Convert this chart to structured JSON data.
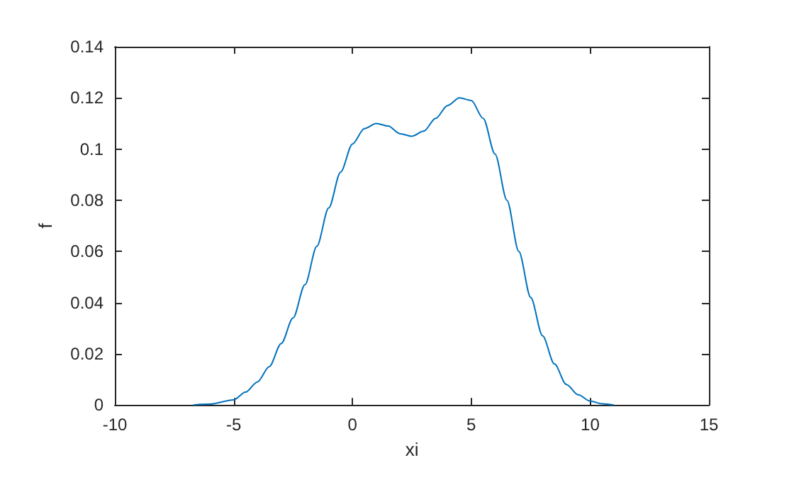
{
  "chart_data": {
    "type": "line",
    "xlabel": "xi",
    "ylabel": "f",
    "x": [
      -6.7,
      -6,
      -5,
      -4.5,
      -4,
      -3.5,
      -3,
      -2.5,
      -2,
      -1.5,
      -1,
      -0.5,
      0,
      0.5,
      1,
      1.5,
      2,
      2.5,
      3,
      3.5,
      4,
      4.5,
      5,
      5.5,
      6,
      6.5,
      7,
      7.5,
      8,
      8.5,
      9,
      9.5,
      10,
      10.5,
      11
    ],
    "series": [
      {
        "color": "#0072bd",
        "values": [
          0,
          0.0003,
          0.002,
          0.005,
          0.009,
          0.015,
          0.024,
          0.034,
          0.047,
          0.062,
          0.077,
          0.091,
          0.102,
          0.108,
          0.11,
          0.109,
          0.106,
          0.105,
          0.107,
          0.112,
          0.117,
          0.12,
          0.119,
          0.112,
          0.098,
          0.08,
          0.06,
          0.042,
          0.027,
          0.016,
          0.008,
          0.004,
          0.0015,
          0.0005,
          0
        ]
      }
    ],
    "xlim": [
      -10,
      15
    ],
    "xticks": [
      -10,
      -5,
      0,
      5,
      10,
      15
    ],
    "ylim": [
      0,
      0.14
    ],
    "yticks": [
      0,
      0.02,
      0.04,
      0.06,
      0.08,
      0.1,
      0.12,
      0.14
    ],
    "grid": false,
    "marker": "none",
    "line_style": "solid"
  }
}
